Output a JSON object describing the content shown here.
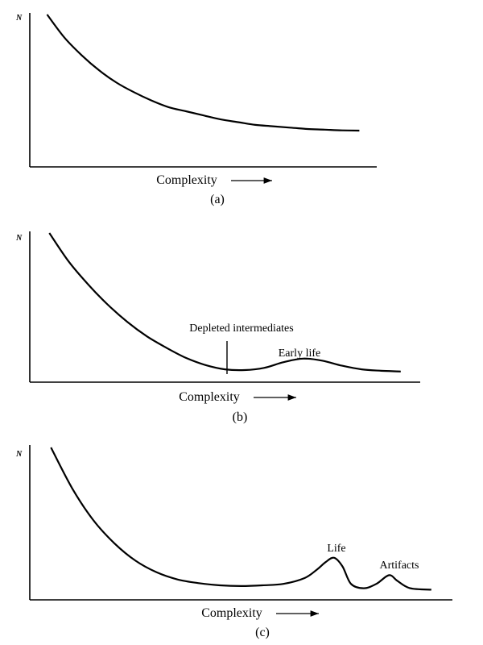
{
  "chart_data": [
    {
      "type": "line",
      "panel_label": "(a)",
      "ylabel": "N",
      "xlabel": "Complexity",
      "annotations": [],
      "curve": [
        [
          0.05,
          1.0
        ],
        [
          0.1,
          0.83
        ],
        [
          0.15,
          0.7
        ],
        [
          0.2,
          0.59
        ],
        [
          0.25,
          0.5
        ],
        [
          0.3,
          0.43
        ],
        [
          0.35,
          0.37
        ],
        [
          0.4,
          0.32
        ],
        [
          0.45,
          0.29
        ],
        [
          0.5,
          0.26
        ],
        [
          0.55,
          0.23
        ],
        [
          0.6,
          0.21
        ],
        [
          0.65,
          0.19
        ],
        [
          0.7,
          0.18
        ],
        [
          0.75,
          0.17
        ],
        [
          0.8,
          0.16
        ],
        [
          0.85,
          0.155
        ],
        [
          0.9,
          0.15
        ],
        [
          0.95,
          0.148
        ]
      ]
    },
    {
      "type": "line",
      "panel_label": "(b)",
      "ylabel": "N",
      "xlabel": "Complexity",
      "annotations": [
        {
          "text": "Depleted intermediates",
          "x": 0.5
        },
        {
          "text": "Early life",
          "x": 0.72
        }
      ],
      "curve": [
        [
          0.05,
          1.0
        ],
        [
          0.1,
          0.8
        ],
        [
          0.15,
          0.64
        ],
        [
          0.2,
          0.5
        ],
        [
          0.25,
          0.38
        ],
        [
          0.3,
          0.28
        ],
        [
          0.35,
          0.2
        ],
        [
          0.4,
          0.13
        ],
        [
          0.45,
          0.08
        ],
        [
          0.5,
          0.05
        ],
        [
          0.55,
          0.045
        ],
        [
          0.6,
          0.06
        ],
        [
          0.65,
          0.1
        ],
        [
          0.7,
          0.125
        ],
        [
          0.75,
          0.11
        ],
        [
          0.8,
          0.075
        ],
        [
          0.85,
          0.05
        ],
        [
          0.9,
          0.04
        ],
        [
          0.95,
          0.035
        ]
      ]
    },
    {
      "type": "line",
      "panel_label": "(c)",
      "ylabel": "N",
      "xlabel": "Complexity",
      "annotations": [
        {
          "text": "Life",
          "x": 0.73
        },
        {
          "text": "Artifacts",
          "x": 0.86
        }
      ],
      "curve": [
        [
          0.05,
          1.0
        ],
        [
          0.1,
          0.72
        ],
        [
          0.15,
          0.5
        ],
        [
          0.2,
          0.34
        ],
        [
          0.25,
          0.22
        ],
        [
          0.3,
          0.14
        ],
        [
          0.35,
          0.09
        ],
        [
          0.4,
          0.065
        ],
        [
          0.45,
          0.05
        ],
        [
          0.5,
          0.045
        ],
        [
          0.55,
          0.05
        ],
        [
          0.6,
          0.06
        ],
        [
          0.65,
          0.1
        ],
        [
          0.68,
          0.16
        ],
        [
          0.7,
          0.21
        ],
        [
          0.72,
          0.24
        ],
        [
          0.74,
          0.18
        ],
        [
          0.76,
          0.06
        ],
        [
          0.79,
          0.03
        ],
        [
          0.82,
          0.06
        ],
        [
          0.85,
          0.12
        ],
        [
          0.87,
          0.08
        ],
        [
          0.9,
          0.03
        ],
        [
          0.95,
          0.02
        ]
      ]
    }
  ]
}
